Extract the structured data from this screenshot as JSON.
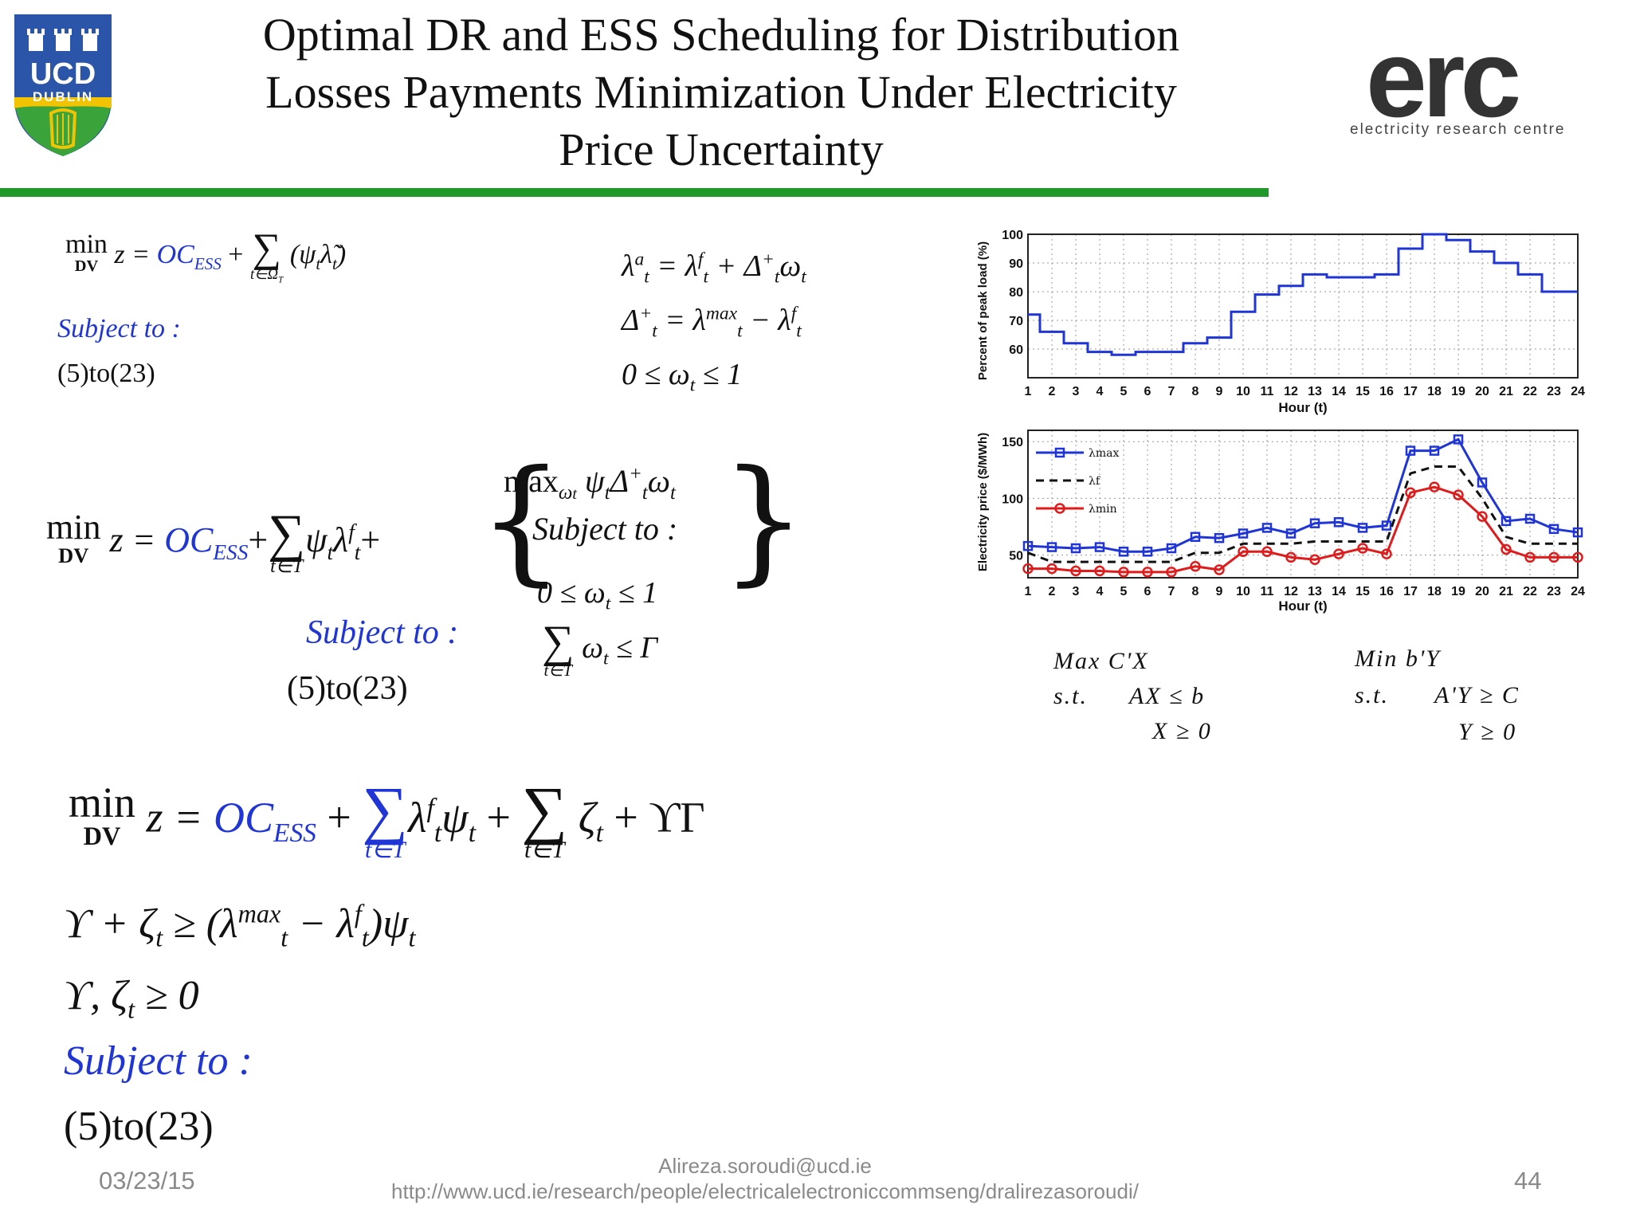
{
  "header": {
    "title_lines": [
      "Optimal DR and ESS Scheduling for Distribution",
      "Losses Payments Minimization Under Electricity",
      "Price Uncertainty"
    ],
    "ucd_logo": {
      "line1": "UCD",
      "line2": "DUBLIN"
    },
    "erc_logo": {
      "mark": "erc",
      "tagline": "electricity research centre"
    },
    "accent_green": "#1f9a2a"
  },
  "equations": {
    "eq1": {
      "min": "min",
      "dv": "DV",
      "lhs": "z =",
      "oc": "OC",
      "ess": "ESS",
      "sum_lim": "t∈Ω",
      "sum_lim_sub": "T",
      "term": "(ψ",
      "subject": "Subject to :",
      "range": "(5)to(23)"
    },
    "eq2": {
      "line1": "λ",
      "line2": "Δ",
      "line3": "0 ≤ ω",
      "tail3": " ≤ 1"
    },
    "eq3": {
      "subject": "Subject to :",
      "range": "(5)to(23)",
      "inner_subject": "Subject to :",
      "inner_con": "0 ≤ ω",
      "inner_con_tail": " ≤ 1",
      "gamma": "≤ Γ",
      "sum_lim": "t∈T"
    },
    "eq4": {
      "sum_lim": "t∈T",
      "tail": "+ ϒΓ",
      "c1": "ϒ + ζ",
      "c2": "ϒ, ζ",
      "c2_tail": " ≥ 0",
      "subject": "Subject to :",
      "range": "(5)to(23)"
    }
  },
  "lp_dual": {
    "primal": {
      "obj": "Max  C'X",
      "st": "s.t.",
      "c1": "AX  ≤ b",
      "c2": "X  ≥ 0"
    },
    "dual": {
      "obj": "Min  b'Y",
      "st": "s.t.",
      "c1": "A'Y  ≥ C",
      "c2": "Y  ≥ 0"
    }
  },
  "chart_data": [
    {
      "type": "line",
      "xlabel": "Hour (t)",
      "ylabel": "Percent of peak load (%)",
      "x": [
        1,
        2,
        3,
        4,
        5,
        6,
        7,
        8,
        9,
        10,
        11,
        12,
        13,
        14,
        15,
        16,
        17,
        18,
        19,
        20,
        21,
        22,
        23,
        24
      ],
      "xlim": [
        1,
        24
      ],
      "ylim": [
        50,
        100
      ],
      "yticks": [
        60,
        70,
        80,
        90,
        100
      ],
      "grid": true,
      "series": [
        {
          "color": "#1f35d6",
          "step": true,
          "values": [
            72,
            66,
            62,
            59,
            58,
            59,
            59,
            62,
            64,
            73,
            79,
            82,
            86,
            85,
            85,
            86,
            95,
            100,
            98,
            94,
            90,
            86,
            80,
            80
          ]
        }
      ]
    },
    {
      "type": "line",
      "xlabel": "Hour (t)",
      "ylabel": "Electricity price ($/MWh)",
      "x": [
        1,
        2,
        3,
        4,
        5,
        6,
        7,
        8,
        9,
        10,
        11,
        12,
        13,
        14,
        15,
        16,
        17,
        18,
        19,
        20,
        21,
        22,
        23,
        24
      ],
      "xlim": [
        1,
        24
      ],
      "ylim": [
        30,
        160
      ],
      "yticks": [
        50,
        100,
        150
      ],
      "grid": true,
      "legend": "top-left",
      "series": [
        {
          "name": "λmax",
          "color": "#1f35d6",
          "marker": "square",
          "values": [
            58,
            57,
            56,
            57,
            53,
            53,
            56,
            66,
            65,
            69,
            74,
            69,
            78,
            79,
            74,
            76,
            142,
            142,
            152,
            114,
            80,
            82,
            73,
            70
          ]
        },
        {
          "name": "λf",
          "color": "#111111",
          "dash": true,
          "values": [
            52,
            44,
            44,
            44,
            44,
            44,
            44,
            52,
            52,
            60,
            60,
            60,
            62,
            62,
            62,
            62,
            122,
            128,
            128,
            100,
            66,
            60,
            60,
            60
          ]
        },
        {
          "name": "λmin",
          "color": "#e01b1b",
          "marker": "circle",
          "values": [
            38,
            38,
            36,
            36,
            35,
            35,
            35,
            40,
            37,
            53,
            53,
            48,
            46,
            51,
            56,
            51,
            105,
            110,
            103,
            84,
            55,
            48,
            48,
            48
          ]
        }
      ]
    }
  ],
  "footer": {
    "date": "03/23/15",
    "email": "Alireza.soroudi@ucd.ie",
    "url": "http://www.ucd.ie/research/people/electricalelectroniccommseng/dralirezasoroudi/",
    "page": "44"
  }
}
